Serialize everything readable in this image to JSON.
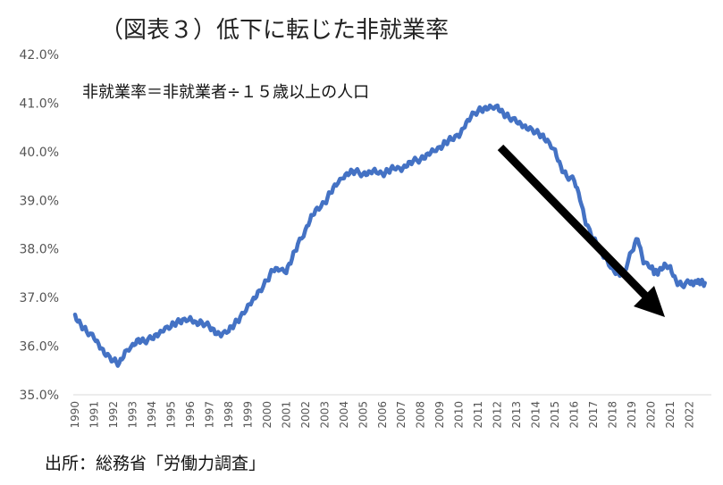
{
  "chart_data": {
    "type": "line",
    "title": "（図表３）低下に転じた非就業率",
    "annotation": "非就業率＝非就業者÷１５歳以上の人口",
    "source": "出所：総務省「労働力調査」",
    "xlabel": "",
    "ylabel": "",
    "ylim": [
      35.0,
      42.0
    ],
    "y_ticks": [
      "35.0%",
      "36.0%",
      "37.0%",
      "38.0%",
      "39.0%",
      "40.0%",
      "41.0%",
      "42.0%"
    ],
    "x_ticks": [
      "1990",
      "1991",
      "1992",
      "1993",
      "1994",
      "1995",
      "1996",
      "1997",
      "1998",
      "1999",
      "2000",
      "2001",
      "2002",
      "2003",
      "2004",
      "2005",
      "2006",
      "2007",
      "2008",
      "2009",
      "2010",
      "2011",
      "2012",
      "2013",
      "2014",
      "2015",
      "2016",
      "2017",
      "2018",
      "2019",
      "2020",
      "2021",
      "2022"
    ],
    "grid": false,
    "line_color": "#4472C4",
    "arrow_color": "#000000",
    "series": [
      {
        "name": "",
        "x": [
          1990.0,
          1990.3,
          1990.6,
          1991.0,
          1991.3,
          1991.6,
          1992.0,
          1992.3,
          1992.6,
          1993.0,
          1993.3,
          1993.6,
          1994.0,
          1994.3,
          1994.6,
          1995.0,
          1995.3,
          1995.6,
          1996.0,
          1996.3,
          1996.6,
          1997.0,
          1997.3,
          1997.6,
          1998.0,
          1998.3,
          1998.6,
          1999.0,
          1999.3,
          1999.6,
          2000.0,
          2000.3,
          2000.6,
          2001.0,
          2001.3,
          2001.6,
          2002.0,
          2002.3,
          2002.6,
          2003.0,
          2003.3,
          2003.6,
          2004.0,
          2004.3,
          2004.6,
          2005.0,
          2005.3,
          2005.6,
          2006.0,
          2006.3,
          2006.6,
          2007.0,
          2007.3,
          2007.6,
          2008.0,
          2008.3,
          2008.6,
          2009.0,
          2009.3,
          2009.6,
          2010.0,
          2010.3,
          2010.6,
          2011.0,
          2011.3,
          2011.6,
          2012.0,
          2012.3,
          2012.6,
          2013.0,
          2013.3,
          2013.6,
          2014.0,
          2014.3,
          2014.6,
          2015.0,
          2015.3,
          2015.6,
          2016.0,
          2016.3,
          2016.6,
          2017.0,
          2017.3,
          2017.6,
          2018.0,
          2018.3,
          2018.6,
          2019.0,
          2019.3,
          2019.6,
          2020.0,
          2020.2,
          2020.4,
          2020.7,
          2021.0,
          2021.3,
          2021.6,
          2022.0,
          2022.2,
          2022.4,
          2022.6,
          2022.8
        ],
        "values": [
          36.65,
          36.45,
          36.3,
          36.15,
          35.95,
          35.8,
          35.7,
          35.65,
          35.9,
          36.05,
          36.15,
          36.1,
          36.15,
          36.2,
          36.3,
          36.4,
          36.5,
          36.55,
          36.6,
          36.5,
          36.5,
          36.4,
          36.25,
          36.2,
          36.3,
          36.45,
          36.6,
          36.85,
          37.0,
          37.15,
          37.35,
          37.55,
          37.55,
          37.5,
          37.8,
          38.1,
          38.4,
          38.7,
          38.85,
          38.95,
          39.15,
          39.3,
          39.45,
          39.55,
          39.6,
          39.55,
          39.6,
          39.65,
          39.55,
          39.6,
          39.65,
          39.6,
          39.7,
          39.8,
          39.85,
          39.95,
          40.05,
          40.1,
          40.2,
          40.25,
          40.3,
          40.5,
          40.7,
          40.85,
          40.9,
          40.95,
          40.95,
          40.8,
          40.7,
          40.6,
          40.5,
          40.45,
          40.4,
          40.35,
          40.25,
          40.05,
          39.7,
          39.5,
          39.4,
          39.0,
          38.5,
          38.2,
          38.0,
          37.85,
          37.6,
          37.5,
          37.55,
          37.95,
          38.2,
          37.7,
          37.6,
          37.5,
          37.55,
          37.7,
          37.65,
          37.35,
          37.25,
          37.3,
          37.25,
          37.3,
          37.3,
          37.3
        ]
      }
    ]
  }
}
